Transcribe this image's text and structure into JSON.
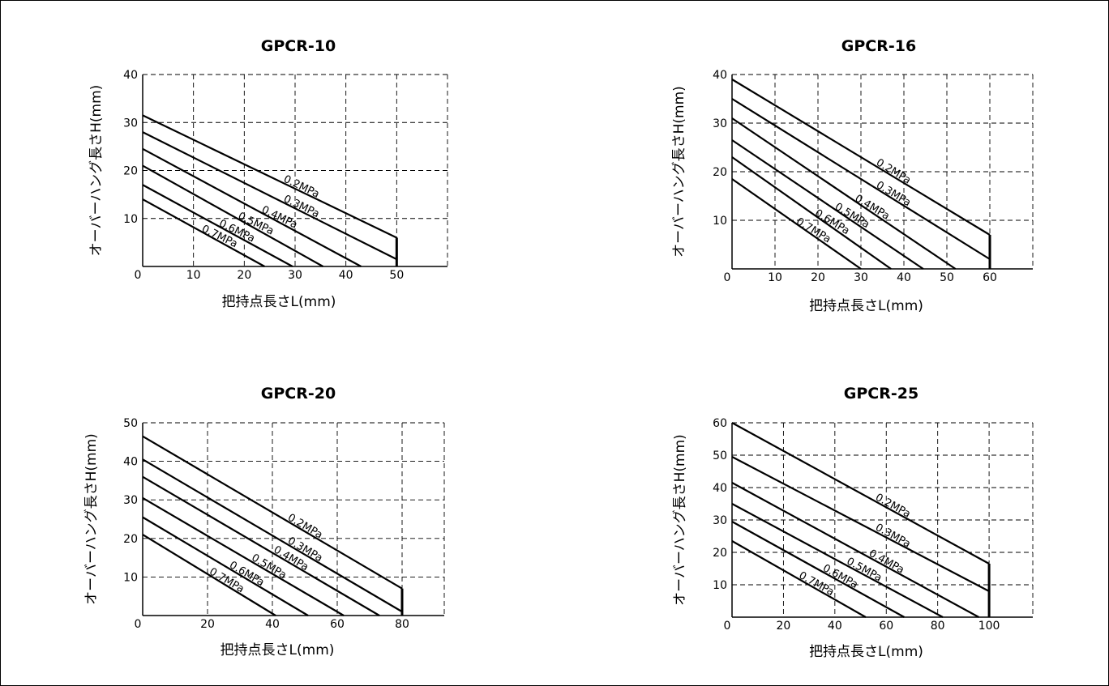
{
  "chart_data": [
    {
      "type": "line",
      "title": "GPCR-10",
      "xlabel": "把持点長さL(mm)",
      "ylabel": "オーバーハング長さH(mm)",
      "xlim": [
        0,
        60
      ],
      "ylim": [
        0,
        40
      ],
      "xticks": [
        0,
        10,
        20,
        30,
        40,
        50
      ],
      "yticks": [
        10,
        20,
        30,
        40
      ],
      "grid": true,
      "series": [
        {
          "name": "0.2MPa",
          "points": [
            [
              0,
              31.5
            ],
            [
              50,
              6
            ]
          ]
        },
        {
          "name": "0.3MPa",
          "points": [
            [
              0,
              28
            ],
            [
              50,
              1.5
            ]
          ]
        },
        {
          "name": "0.4MPa",
          "points": [
            [
              0,
              24.5
            ],
            [
              43,
              0
            ]
          ]
        },
        {
          "name": "0.5MPa",
          "points": [
            [
              0,
              21
            ],
            [
              35.5,
              0
            ]
          ]
        },
        {
          "name": "0.6MPa",
          "points": [
            [
              0,
              17
            ],
            [
              29.5,
              0
            ]
          ]
        },
        {
          "name": "0.7MPa",
          "points": [
            [
              0,
              14
            ],
            [
              24,
              0
            ]
          ]
        }
      ]
    },
    {
      "type": "line",
      "title": "GPCR-16",
      "xlabel": "把持点長さL(mm)",
      "ylabel": "オーバーハング長さH(mm)",
      "xlim": [
        0,
        70
      ],
      "ylim": [
        0,
        40
      ],
      "xticks": [
        0,
        10,
        20,
        30,
        40,
        50,
        60
      ],
      "yticks": [
        10,
        20,
        30,
        40
      ],
      "grid": true,
      "series": [
        {
          "name": "0.2MPa",
          "points": [
            [
              0,
              39
            ],
            [
              60,
              7
            ]
          ]
        },
        {
          "name": "0.3MPa",
          "points": [
            [
              0,
              35
            ],
            [
              60,
              2
            ]
          ]
        },
        {
          "name": "0.4MPa",
          "points": [
            [
              0,
              31
            ],
            [
              52,
              0
            ]
          ]
        },
        {
          "name": "0.5MPa",
          "points": [
            [
              0,
              26.5
            ],
            [
              44.5,
              0
            ]
          ]
        },
        {
          "name": "0.6MPa",
          "points": [
            [
              0,
              23
            ],
            [
              37,
              0
            ]
          ]
        },
        {
          "name": "0.7MPa",
          "points": [
            [
              0,
              18.5
            ],
            [
              30,
              0
            ]
          ]
        }
      ]
    },
    {
      "type": "line",
      "title": "GPCR-20",
      "xlabel": "把持点長さL(mm)",
      "ylabel": "オーバーハング長さH(mm)",
      "xlim": [
        0,
        93
      ],
      "ylim": [
        0,
        50
      ],
      "xticks": [
        0,
        20,
        40,
        60,
        80
      ],
      "yticks": [
        10,
        20,
        30,
        40,
        50
      ],
      "grid": true,
      "series": [
        {
          "name": "0.2MPa",
          "points": [
            [
              0,
              46.5
            ],
            [
              80,
              7
            ]
          ]
        },
        {
          "name": "0.3MPa",
          "points": [
            [
              0,
              40.5
            ],
            [
              80,
              1
            ]
          ]
        },
        {
          "name": "0.4MPa",
          "points": [
            [
              0,
              36
            ],
            [
              73,
              0
            ]
          ]
        },
        {
          "name": "0.5MPa",
          "points": [
            [
              0,
              30.5
            ],
            [
              62,
              0
            ]
          ]
        },
        {
          "name": "0.6MPa",
          "points": [
            [
              0,
              25.5
            ],
            [
              51,
              0
            ]
          ]
        },
        {
          "name": "0.7MPa",
          "points": [
            [
              0,
              21
            ],
            [
              41,
              0
            ]
          ]
        }
      ]
    },
    {
      "type": "line",
      "title": "GPCR-25",
      "xlabel": "把持点長さL(mm)",
      "ylabel": "オーバーハング長さH(mm)",
      "xlim": [
        0,
        117
      ],
      "ylim": [
        0,
        60
      ],
      "xticks": [
        0,
        20,
        40,
        60,
        80,
        100
      ],
      "yticks": [
        10,
        20,
        30,
        40,
        50,
        60
      ],
      "grid": true,
      "series": [
        {
          "name": "0.2MPa",
          "points": [
            [
              0,
              60
            ],
            [
              100,
              16.5
            ]
          ]
        },
        {
          "name": "0.3MPa",
          "points": [
            [
              0,
              49.5
            ],
            [
              100,
              8
            ]
          ]
        },
        {
          "name": "0.4MPa",
          "points": [
            [
              0,
              41.5
            ],
            [
              96,
              0
            ]
          ]
        },
        {
          "name": "0.5MPa",
          "points": [
            [
              0,
              35
            ],
            [
              82,
              0
            ]
          ]
        },
        {
          "name": "0.6MPa",
          "points": [
            [
              0,
              29.5
            ],
            [
              67,
              0
            ]
          ]
        },
        {
          "name": "0.7MPa",
          "points": [
            [
              0,
              23.5
            ],
            [
              52,
              0
            ]
          ]
        }
      ]
    }
  ]
}
